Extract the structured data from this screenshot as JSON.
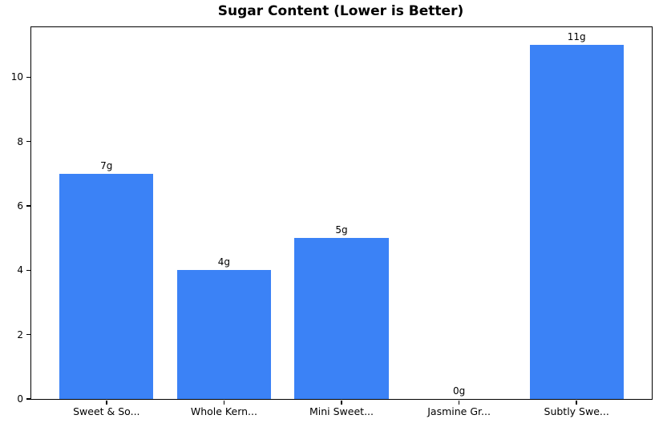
{
  "figure": {
    "background": "#ffffff"
  },
  "chart_data": {
    "type": "bar",
    "title": "Sugar Content (Lower is Better)",
    "categories": [
      "Sweet & So...",
      "Whole Kern...",
      "Mini Sweet...",
      "Jasmine Gr...",
      "Subtly Swe..."
    ],
    "values": [
      7,
      4,
      5,
      0,
      11
    ],
    "bar_labels": [
      "7g",
      "4g",
      "5g",
      "0g",
      "11g"
    ],
    "xlabel": "",
    "ylabel": "",
    "yticks": [
      0,
      2,
      4,
      6,
      8,
      10
    ],
    "ylim": [
      0,
      11.55
    ],
    "xlim": [
      -0.64,
      4.64
    ],
    "bar_width": 0.8,
    "bar_color": "#3b82f6",
    "grid": false,
    "legend": null
  }
}
